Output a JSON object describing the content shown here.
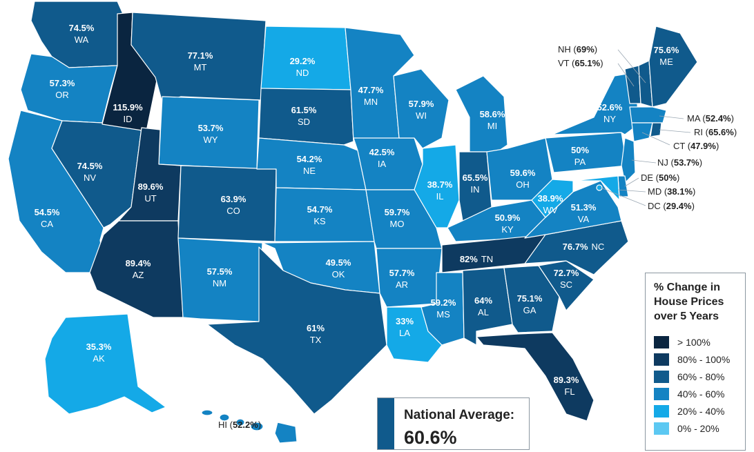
{
  "legend": {
    "title_lines": [
      "% Change in",
      "House Prices",
      "over 5 Years"
    ],
    "bins": [
      {
        "label": "> 100%",
        "color": "#0a2540"
      },
      {
        "label": "80% - 100%",
        "color": "#0e3a60"
      },
      {
        "label": "60% - 80%",
        "color": "#105a8c"
      },
      {
        "label": "40% - 60%",
        "color": "#1483c3"
      },
      {
        "label": "20% - 40%",
        "color": "#14a9e7"
      },
      {
        "label": "0% - 20%",
        "color": "#5cc8f2"
      }
    ]
  },
  "national": {
    "label": "National Average:",
    "value": "60.6%",
    "bar_color": "#105a8c"
  },
  "states": {
    "WA": {
      "pct": "74.5%",
      "abbr": "WA",
      "color": "#105a8c"
    },
    "OR": {
      "pct": "57.3%",
      "abbr": "OR",
      "color": "#1483c3"
    },
    "CA": {
      "pct": "54.5%",
      "abbr": "CA",
      "color": "#1483c3"
    },
    "NV": {
      "pct": "74.5%",
      "abbr": "NV",
      "color": "#105a8c"
    },
    "ID": {
      "pct": "115.9%",
      "abbr": "ID",
      "color": "#0a2540"
    },
    "MT": {
      "pct": "77.1%",
      "abbr": "MT",
      "color": "#105a8c"
    },
    "WY": {
      "pct": "53.7%",
      "abbr": "WY",
      "color": "#1483c3"
    },
    "UT": {
      "pct": "89.6%",
      "abbr": "UT",
      "color": "#0e3a60"
    },
    "AZ": {
      "pct": "89.4%",
      "abbr": "AZ",
      "color": "#0e3a60"
    },
    "CO": {
      "pct": "63.9%",
      "abbr": "CO",
      "color": "#105a8c"
    },
    "NM": {
      "pct": "57.5%",
      "abbr": "NM",
      "color": "#1483c3"
    },
    "ND": {
      "pct": "29.2%",
      "abbr": "ND",
      "color": "#14a9e7"
    },
    "SD": {
      "pct": "61.5%",
      "abbr": "SD",
      "color": "#105a8c"
    },
    "NE": {
      "pct": "54.2%",
      "abbr": "NE",
      "color": "#1483c3"
    },
    "KS": {
      "pct": "54.7%",
      "abbr": "KS",
      "color": "#1483c3"
    },
    "OK": {
      "pct": "49.5%",
      "abbr": "OK",
      "color": "#1483c3"
    },
    "TX": {
      "pct": "61%",
      "abbr": "TX",
      "color": "#105a8c"
    },
    "MN": {
      "pct": "47.7%",
      "abbr": "MN",
      "color": "#1483c3"
    },
    "IA": {
      "pct": "42.5%",
      "abbr": "IA",
      "color": "#1483c3"
    },
    "MO": {
      "pct": "59.7%",
      "abbr": "MO",
      "color": "#1483c3"
    },
    "AR": {
      "pct": "57.7%",
      "abbr": "AR",
      "color": "#1483c3"
    },
    "LA": {
      "pct": "33%",
      "abbr": "LA",
      "color": "#14a9e7"
    },
    "WI": {
      "pct": "57.9%",
      "abbr": "WI",
      "color": "#1483c3"
    },
    "IL": {
      "pct": "38.7%",
      "abbr": "IL",
      "color": "#14a9e7"
    },
    "MI": {
      "pct": "58.6%",
      "abbr": "MI",
      "color": "#1483c3"
    },
    "IN": {
      "pct": "65.5%",
      "abbr": "IN",
      "color": "#105a8c"
    },
    "OH": {
      "pct": "59.6%",
      "abbr": "OH",
      "color": "#1483c3"
    },
    "KY": {
      "pct": "50.9%",
      "abbr": "KY",
      "color": "#1483c3"
    },
    "TN": {
      "pct": "82%",
      "abbr": "TN",
      "color": "#0e3a60"
    },
    "MS": {
      "pct": "59.2%",
      "abbr": "MS",
      "color": "#1483c3"
    },
    "AL": {
      "pct": "64%",
      "abbr": "AL",
      "color": "#105a8c"
    },
    "GA": {
      "pct": "75.1%",
      "abbr": "GA",
      "color": "#105a8c"
    },
    "FL": {
      "pct": "89.3%",
      "abbr": "FL",
      "color": "#0e3a60"
    },
    "SC": {
      "pct": "72.7%",
      "abbr": "SC",
      "color": "#105a8c"
    },
    "NC": {
      "pct": "76.7%",
      "abbr": "NC",
      "color": "#105a8c"
    },
    "VA": {
      "pct": "51.3%",
      "abbr": "VA",
      "color": "#1483c3"
    },
    "WV": {
      "pct": "38.9%",
      "abbr": "WV",
      "color": "#14a9e7"
    },
    "PA": {
      "pct": "50%",
      "abbr": "PA",
      "color": "#1483c3"
    },
    "NY": {
      "pct": "52.6%",
      "abbr": "NY",
      "color": "#1483c3"
    },
    "ME": {
      "pct": "75.6%",
      "abbr": "ME",
      "color": "#105a8c"
    },
    "AK": {
      "pct": "35.3%",
      "abbr": "AK",
      "color": "#14a9e7"
    },
    "HI": {
      "pct": "52.2%",
      "abbr": "HI",
      "color": "#1483c3"
    },
    "NH": {
      "pct": "69%",
      "abbr": "NH",
      "color": "#105a8c"
    },
    "VT": {
      "pct": "65.1%",
      "abbr": "VT",
      "color": "#105a8c"
    },
    "MA": {
      "pct": "52.4%",
      "abbr": "MA",
      "color": "#1483c3"
    },
    "RI": {
      "pct": "65.6%",
      "abbr": "RI",
      "color": "#105a8c"
    },
    "CT": {
      "pct": "47.9%",
      "abbr": "CT",
      "color": "#1483c3"
    },
    "NJ": {
      "pct": "53.7%",
      "abbr": "NJ",
      "color": "#1483c3"
    },
    "DE": {
      "pct": "50%",
      "abbr": "DE",
      "color": "#1483c3"
    },
    "MD": {
      "pct": "38.1%",
      "abbr": "MD",
      "color": "#14a9e7"
    },
    "DC": {
      "pct": "29.4%",
      "abbr": "DC",
      "color": "#14a9e7"
    }
  }
}
